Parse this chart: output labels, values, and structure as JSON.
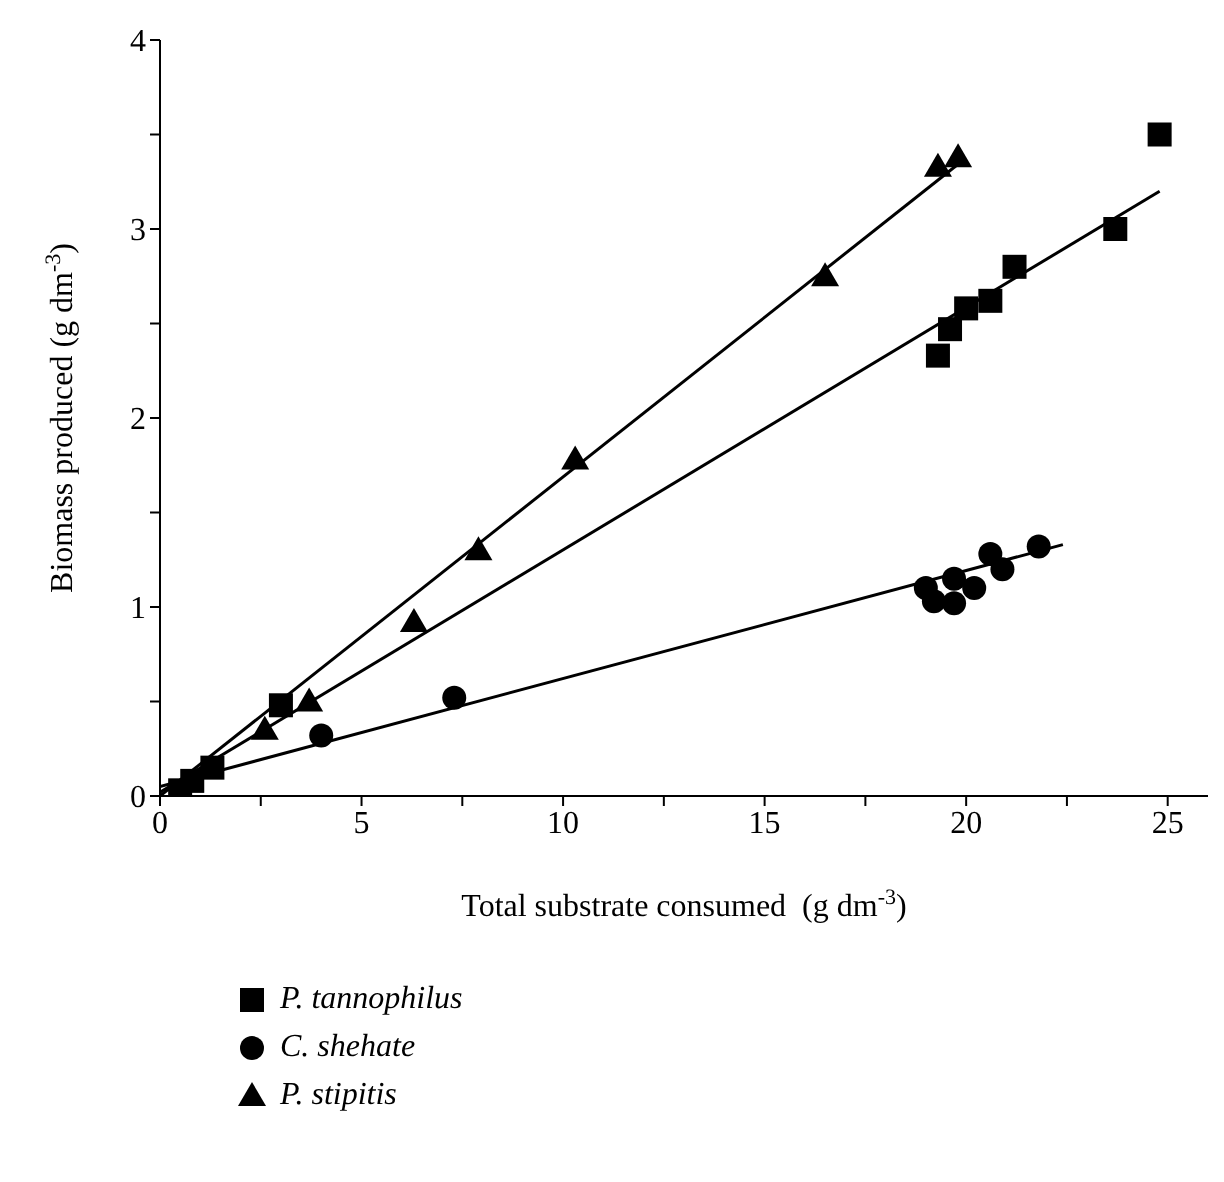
{
  "chart_data": {
    "type": "scatter",
    "xlabel": "Total substrate consumed  (g dm$^{-3}$)",
    "ylabel": "Biomass produced (g dm$^{-3}$)",
    "xlim": [
      0,
      26
    ],
    "xticks": [
      0,
      {
        "value": 2.5,
        "label": null
      },
      5,
      {
        "value": 7.5,
        "label": null
      },
      10,
      {
        "value": 12.5,
        "label": null
      },
      15,
      {
        "value": 17.5,
        "label": null
      },
      20,
      {
        "value": 22.5,
        "label": null
      },
      25
    ],
    "ylim": [
      0,
      4
    ],
    "yticks": [
      0,
      {
        "value": 0.5,
        "label": null
      },
      1,
      {
        "value": 1.5,
        "label": null
      },
      2,
      {
        "value": 2.5,
        "label": null
      },
      3,
      {
        "value": 3.5,
        "label": null
      },
      4
    ],
    "grid": false,
    "legend": "bottom",
    "series": [
      {
        "name": "P. tannophilus",
        "color": "#000000",
        "marker": "square",
        "x": [
          0.5,
          0.8,
          1.3,
          3.0,
          19.3,
          19.6,
          20.0,
          20.6,
          21.2,
          23.7,
          24.8
        ],
        "values": [
          0.03,
          0.08,
          0.15,
          0.48,
          2.33,
          2.47,
          2.58,
          2.62,
          2.8,
          3.0,
          3.5
        ]
      },
      {
        "name": "C. shehate",
        "color": "#000000",
        "marker": "circle",
        "x": [
          4.0,
          7.3,
          19.0,
          19.2,
          19.5,
          19.7,
          19.7,
          20.2,
          20.6,
          20.9,
          21.8
        ],
        "values": [
          0.32,
          0.52,
          1.1,
          1.03,
          null,
          1.15,
          1.02,
          1.1,
          1.28,
          1.2,
          1.32
        ]
      },
      {
        "name": "P. stipitis",
        "color": "#000000",
        "marker": "triangle",
        "x": [
          2.6,
          3.7,
          6.3,
          7.9,
          10.3,
          16.5,
          19.3,
          19.8
        ],
        "values": [
          0.35,
          0.5,
          0.92,
          1.3,
          1.78,
          2.75,
          3.33,
          3.38
        ]
      },
      {
        "type": "line",
        "color": "#000000",
        "marker": "none",
        "x": [
          0,
          24.8
        ],
        "values": [
          0.02,
          3.2
        ]
      },
      {
        "type": "line",
        "color": "#000000",
        "marker": "none",
        "x": [
          0,
          22.4
        ],
        "values": [
          0.05,
          1.33
        ]
      },
      {
        "type": "line",
        "color": "#000000",
        "marker": "none",
        "x": [
          0,
          19.9
        ],
        "values": [
          0,
          3.36
        ]
      }
    ]
  }
}
